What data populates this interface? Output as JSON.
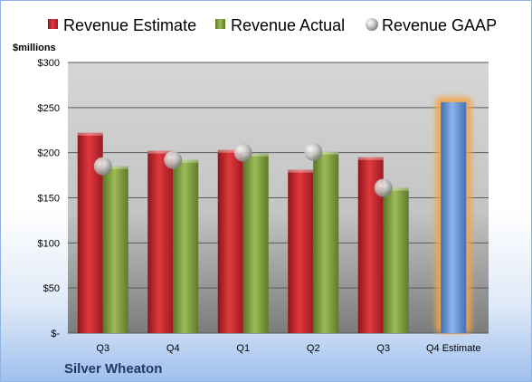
{
  "company": "Silver Wheaton",
  "chart_data": {
    "type": "bar",
    "ylabel": "$millions",
    "ylim": [
      0,
      300
    ],
    "yticks": [
      {
        "value": 0,
        "label": "$-"
      },
      {
        "value": 50,
        "label": "$50"
      },
      {
        "value": 100,
        "label": "$100"
      },
      {
        "value": 150,
        "label": "$150"
      },
      {
        "value": 200,
        "label": "$200"
      },
      {
        "value": 250,
        "label": "$250"
      },
      {
        "value": 300,
        "label": "$300"
      }
    ],
    "categories": [
      "Q3",
      "Q4",
      "Q1",
      "Q2",
      "Q3",
      "Q4 Estimate"
    ],
    "legend_position": "top",
    "grid": true,
    "series": [
      {
        "name": "Revenue Estimate",
        "kind": "bar",
        "color": "#c0262c",
        "values": [
          222,
          202,
          203,
          181,
          195,
          null
        ]
      },
      {
        "name": "Revenue Actual",
        "kind": "bar",
        "color": "#7f9c3a",
        "values": [
          185,
          192,
          199,
          201,
          161,
          null
        ]
      },
      {
        "name": "Revenue GAAP",
        "kind": "marker",
        "color": "#b0b0b0",
        "values": [
          185,
          192,
          200,
          201,
          161,
          null
        ]
      },
      {
        "name": "Q4 Estimate",
        "kind": "highlight-bar",
        "color": "#5b8fd4",
        "glow": "#f5a445",
        "values": [
          null,
          null,
          null,
          null,
          null,
          256
        ]
      }
    ]
  }
}
